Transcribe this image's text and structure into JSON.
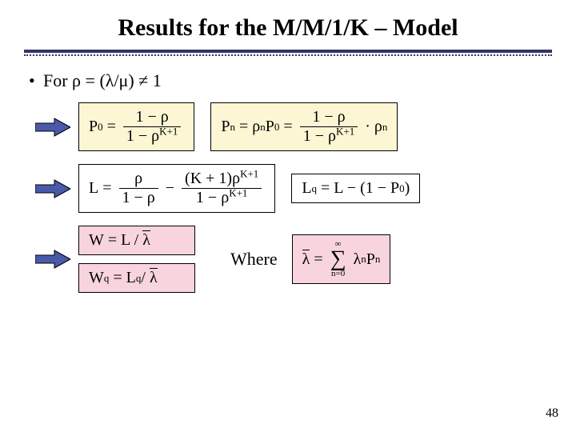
{
  "title": "Results for the M/M/1/K – Model",
  "bullet": "For ρ = (λ/μ) ≠ 1",
  "where_label": "Where",
  "pagenum": "48",
  "colors": {
    "accent": "#333366",
    "box_yellow": "#fdf6d4",
    "box_white": "#ffffff",
    "box_pink": "#f8d5de",
    "arrow_stroke": "#000000",
    "arrow_fill": "#4a5aa8"
  },
  "arrow": {
    "width": 44,
    "height": 26
  },
  "formulas": {
    "row1": [
      {
        "bg": "yellow",
        "html": "P<sub>0</sub>&nbsp;=&nbsp;<span class='frac'><span class='num'>1 − ρ</span><span class='den'>1 − ρ<sup>K+1</sup></span></span>"
      },
      {
        "bg": "yellow",
        "html": "P<sub>n</sub>&nbsp;=&nbsp;ρ<sup>n</sup>P<sub>0</sub>&nbsp;=&nbsp;<span class='frac'><span class='num'>1 − ρ</span><span class='den'>1 − ρ<sup>K+1</sup></span></span>&nbsp;· ρ<sup>n</sup>"
      }
    ],
    "row2": [
      {
        "bg": "white",
        "html": "L&nbsp;=&nbsp;<span class='frac'><span class='num'>ρ</span><span class='den'>1 − ρ</span></span>&nbsp;−&nbsp;<span class='frac'><span class='num'>(K + 1)ρ<sup>K+1</sup></span><span class='den'>1 − ρ<sup>K+1</sup></span></span>"
      },
      {
        "bg": "white",
        "html": "L<sub>q</sub>&nbsp;=&nbsp;L − (1 − P<sub>0</sub>)"
      }
    ],
    "row3_left": [
      {
        "bg": "pink",
        "html": "W&nbsp;=&nbsp;L /&nbsp;<span class='bar'>λ</span>"
      },
      {
        "bg": "pink",
        "html": "W<sub>q</sub>&nbsp;=&nbsp;L<sub>q</sub> /&nbsp;<span class='bar'>λ</span>"
      }
    ],
    "row3_right": {
      "bg": "pink",
      "html": "<span class='bar'>λ</span>&nbsp;=&nbsp;<span class='sum'><span class='lim'>∞</span><span class='sigma'>∑</span><span class='lim'>n=0</span></span>&nbsp;λ<sub>n</sub>P<sub>n</sub>"
    }
  }
}
